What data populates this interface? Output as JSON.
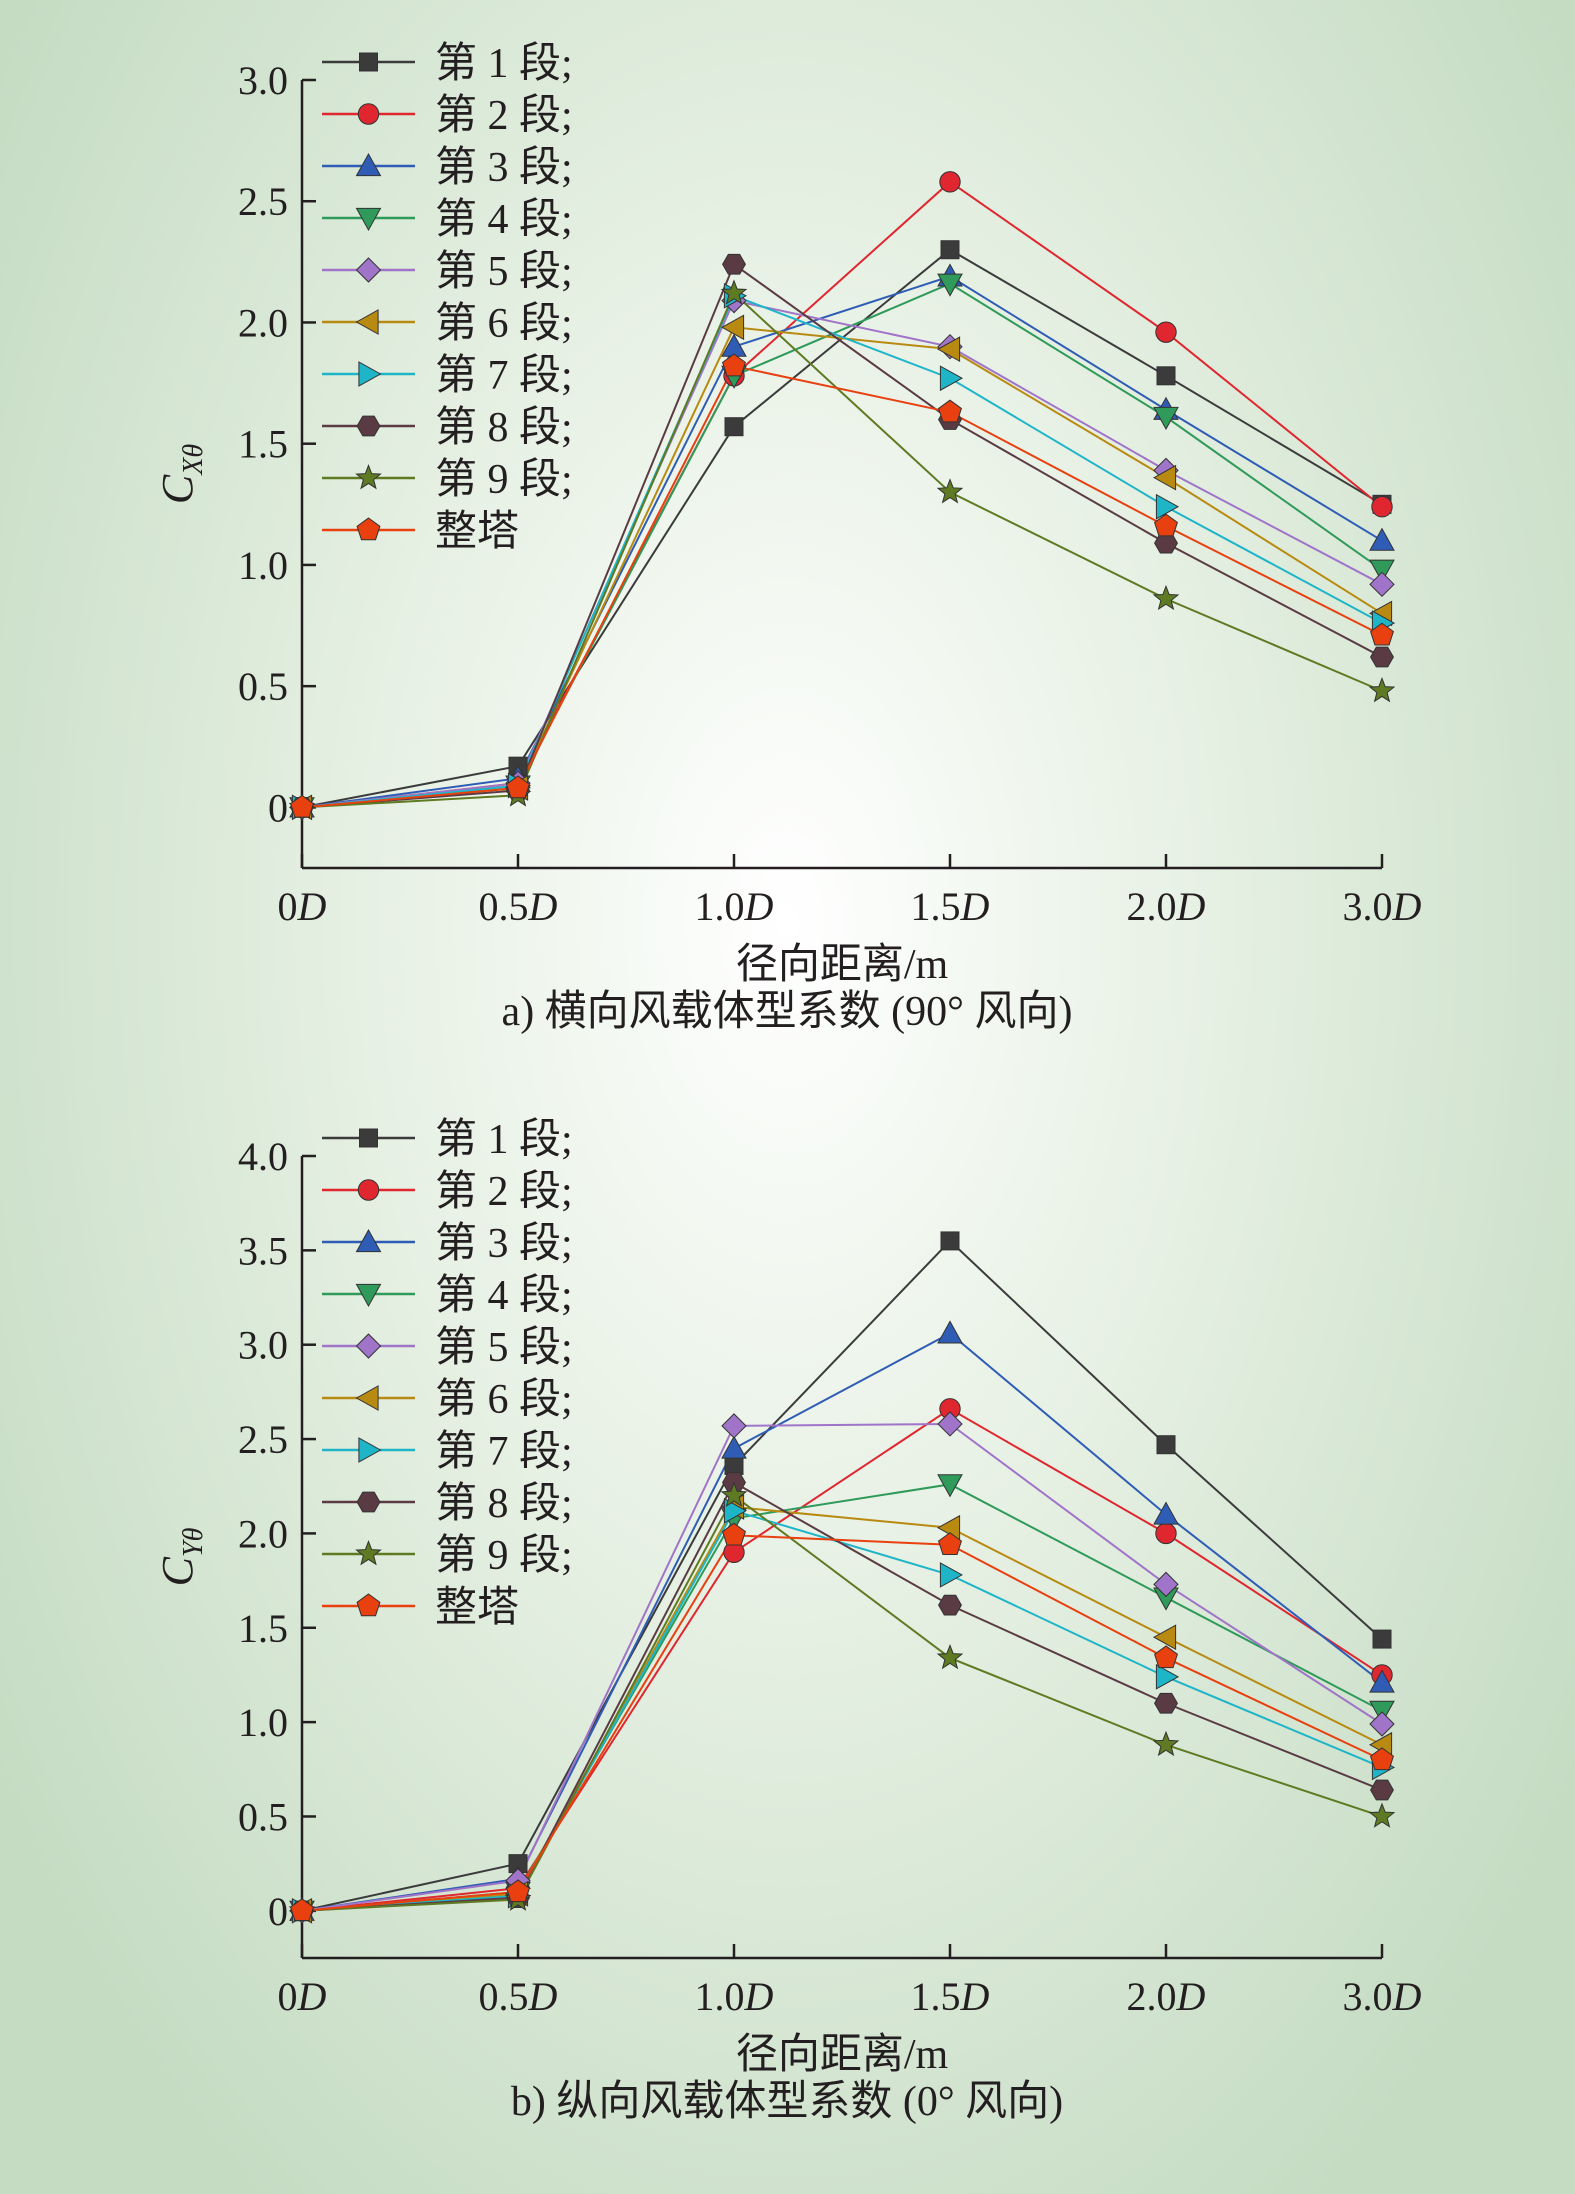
{
  "figure": {
    "background_color": "#cfe2cc",
    "series_styles": [
      {
        "color": "#3b3b3b",
        "marker": "square"
      },
      {
        "color": "#e0262f",
        "marker": "circle"
      },
      {
        "color": "#2f5db5",
        "marker": "triangle-up"
      },
      {
        "color": "#2f9a5a",
        "marker": "triangle-down"
      },
      {
        "color": "#a074c8",
        "marker": "diamond"
      },
      {
        "color": "#b88a12",
        "marker": "triangle-left"
      },
      {
        "color": "#1fb5c8",
        "marker": "triangle-right"
      },
      {
        "color": "#5a3b44",
        "marker": "hexagon"
      },
      {
        "color": "#5e7a22",
        "marker": "star"
      },
      {
        "color": "#e8400f",
        "marker": "pentagon"
      }
    ]
  },
  "chart_data": [
    {
      "type": "line",
      "subtitle": "a) 横向风载体型系数 (90° 风向)",
      "xlabel": "径向距离/m",
      "ylabel_main": "C",
      "ylabel_sub": "Xθ",
      "categories": [
        "0D",
        "0.5D",
        "1.0D",
        "1.5D",
        "2.0D",
        "3.0D"
      ],
      "category_parts": [
        [
          "0",
          "D"
        ],
        [
          "0.5",
          "D"
        ],
        [
          "1.0",
          "D"
        ],
        [
          "1.5",
          "D"
        ],
        [
          "2.0",
          "D"
        ],
        [
          "3.0",
          "D"
        ]
      ],
      "x_positions": [
        0,
        1,
        2,
        3,
        4,
        5
      ],
      "ylim": [
        -0.25,
        3.0
      ],
      "yticks": [
        0,
        0.5,
        1.0,
        1.5,
        2.0,
        2.5,
        3.0
      ],
      "ytick_labels": [
        "0",
        "0.5",
        "1.0",
        "1.5",
        "2.0",
        "2.5",
        "3.0"
      ],
      "legend_position": "top-left",
      "series": [
        {
          "name": "第 1 段;",
          "values": [
            0,
            0.17,
            1.57,
            2.3,
            1.78,
            1.25
          ]
        },
        {
          "name": "第 2 段;",
          "values": [
            0,
            0.1,
            1.78,
            2.58,
            1.96,
            1.24
          ]
        },
        {
          "name": "第 3 段;",
          "values": [
            0,
            0.12,
            1.9,
            2.19,
            1.64,
            1.1
          ]
        },
        {
          "name": "第 4 段;",
          "values": [
            0,
            0.09,
            1.78,
            2.16,
            1.61,
            0.98
          ]
        },
        {
          "name": "第 5 段;",
          "values": [
            0,
            0.1,
            2.09,
            1.9,
            1.39,
            0.92
          ]
        },
        {
          "name": "第 6 段;",
          "values": [
            0,
            0.08,
            1.98,
            1.89,
            1.36,
            0.8
          ]
        },
        {
          "name": "第 7 段;",
          "values": [
            0,
            0.09,
            2.11,
            1.77,
            1.24,
            0.76
          ]
        },
        {
          "name": "第 8 段;",
          "values": [
            0,
            0.07,
            2.24,
            1.6,
            1.09,
            0.62
          ]
        },
        {
          "name": "第 9 段;",
          "values": [
            0,
            0.05,
            2.12,
            1.3,
            0.86,
            0.48
          ]
        },
        {
          "name": "整塔",
          "values": [
            0,
            0.08,
            1.82,
            1.63,
            1.16,
            0.71
          ]
        }
      ]
    },
    {
      "type": "line",
      "subtitle": "b) 纵向风载体型系数 (0° 风向)",
      "xlabel": "径向距离/m",
      "ylabel_main": "C",
      "ylabel_sub": "Yθ",
      "categories": [
        "0D",
        "0.5D",
        "1.0D",
        "1.5D",
        "2.0D",
        "3.0D"
      ],
      "category_parts": [
        [
          "0",
          "D"
        ],
        [
          "0.5",
          "D"
        ],
        [
          "1.0",
          "D"
        ],
        [
          "1.5",
          "D"
        ],
        [
          "2.0",
          "D"
        ],
        [
          "3.0",
          "D"
        ]
      ],
      "x_positions": [
        0,
        1,
        2,
        3,
        4,
        5
      ],
      "ylim": [
        -0.25,
        4.0
      ],
      "yticks": [
        0,
        0.5,
        1.0,
        1.5,
        2.0,
        2.5,
        3.0,
        3.5,
        4.0
      ],
      "ytick_labels": [
        "0",
        "0.5",
        "1.0",
        "1.5",
        "2.0",
        "2.5",
        "3.0",
        "3.5",
        "4.0"
      ],
      "legend_position": "top-left",
      "series": [
        {
          "name": "第 1 段;",
          "values": [
            0,
            0.25,
            2.36,
            3.55,
            2.47,
            1.44
          ]
        },
        {
          "name": "第 2 段;",
          "values": [
            0,
            0.12,
            1.9,
            2.66,
            2.0,
            1.25
          ]
        },
        {
          "name": "第 3 段;",
          "values": [
            0,
            0.17,
            2.45,
            3.06,
            2.1,
            1.21
          ]
        },
        {
          "name": "第 4 段;",
          "values": [
            0,
            0.1,
            2.08,
            2.26,
            1.66,
            1.06
          ]
        },
        {
          "name": "第 5 段;",
          "values": [
            0,
            0.16,
            2.57,
            2.58,
            1.73,
            0.99
          ]
        },
        {
          "name": "第 6 段;",
          "values": [
            0,
            0.09,
            2.14,
            2.03,
            1.45,
            0.88
          ]
        },
        {
          "name": "第 7 段;",
          "values": [
            0,
            0.08,
            2.12,
            1.78,
            1.24,
            0.76
          ]
        },
        {
          "name": "第 8 段;",
          "values": [
            0,
            0.07,
            2.27,
            1.62,
            1.1,
            0.64
          ]
        },
        {
          "name": "第 9 段;",
          "values": [
            0,
            0.06,
            2.2,
            1.34,
            0.88,
            0.5
          ]
        },
        {
          "name": "整塔",
          "values": [
            0,
            0.1,
            1.99,
            1.94,
            1.34,
            0.8
          ]
        }
      ]
    }
  ]
}
